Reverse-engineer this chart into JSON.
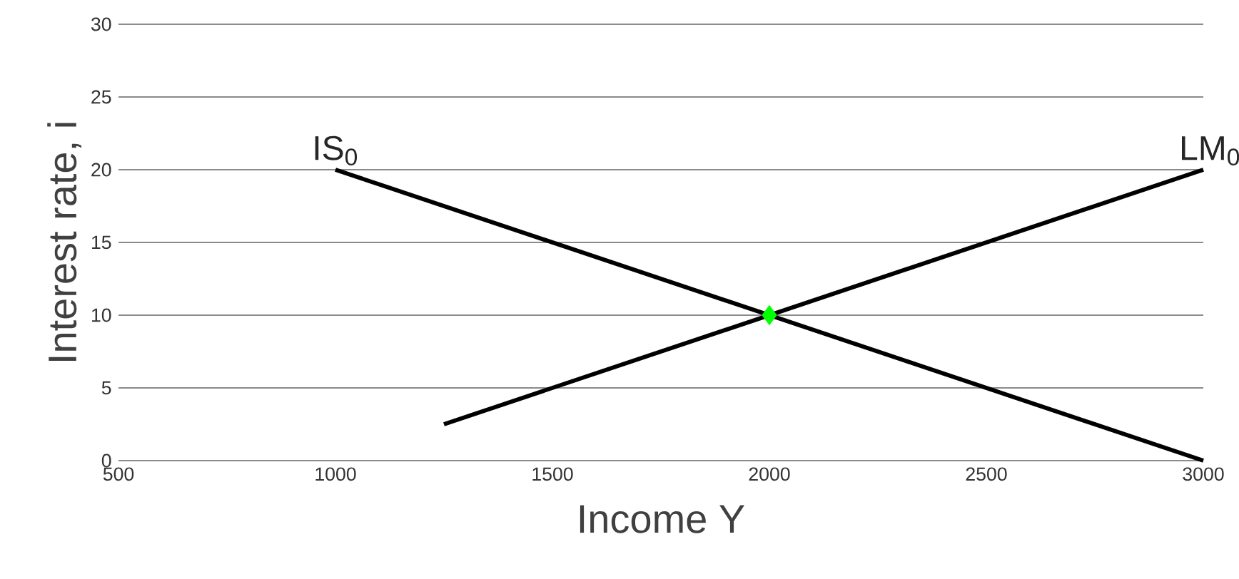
{
  "chart_data": {
    "type": "line",
    "xlabel": "Income Y",
    "ylabel": "Interest rate, i",
    "xlim": [
      500,
      3000
    ],
    "ylim": [
      0,
      30
    ],
    "xticks": [
      500,
      1000,
      1500,
      2000,
      2500,
      3000
    ],
    "yticks": [
      0,
      5,
      10,
      15,
      20,
      25,
      30
    ],
    "grid": "y",
    "marker": "none",
    "line_style": "solid",
    "series": [
      {
        "name": "IS$_{0}$",
        "color": "#000000",
        "x": [
          1000,
          3000
        ],
        "values": [
          20,
          0
        ]
      },
      {
        "name": "LM$_{0}$",
        "color": "#000000",
        "x": [
          1250,
          3000
        ],
        "values": [
          2.5,
          20
        ]
      },
      {
        "type": "scatter",
        "marker": "diamond",
        "color": "#00ff00",
        "x": [
          2000
        ],
        "values": [
          10
        ]
      }
    ]
  }
}
